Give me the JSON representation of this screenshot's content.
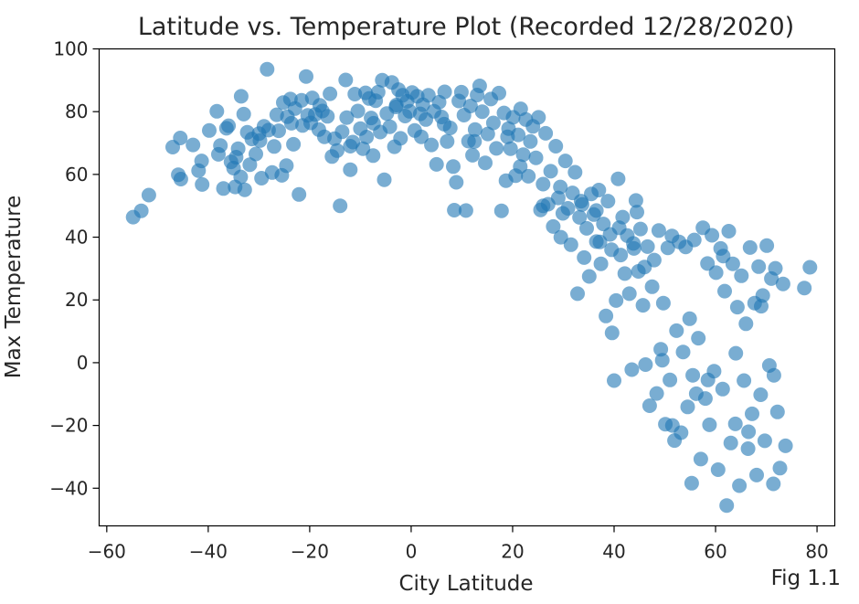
{
  "chart_data": {
    "type": "scatter",
    "title": "Latitude vs. Temperature Plot (Recorded 12/28/2020)",
    "xlabel": "City Latitude",
    "ylabel": "Max Temperature",
    "caption": "Fig 1.1",
    "xlim": [
      -61.5,
      83.5
    ],
    "ylim": [
      -52,
      100
    ],
    "xticks": [
      -60,
      -40,
      -20,
      0,
      20,
      40,
      60,
      80
    ],
    "yticks": [
      -40,
      -20,
      0,
      20,
      40,
      60,
      80,
      100
    ],
    "grid": false,
    "marker_color": "#1f77b4",
    "marker_alpha": 0.6,
    "series": [
      {
        "points": [
          [
            -54.8,
            46.4
          ],
          [
            -53.2,
            48.4
          ],
          [
            -51.7,
            53.4
          ],
          [
            -47.0,
            68.7
          ],
          [
            -45.9,
            59.9
          ],
          [
            -45.5,
            71.6
          ],
          [
            -45.4,
            58.5
          ],
          [
            -43.0,
            69.4
          ],
          [
            -41.9,
            61.2
          ],
          [
            -41.3,
            64.3
          ],
          [
            -41.2,
            56.8
          ],
          [
            -39.8,
            74.0
          ],
          [
            -38.3,
            80.1
          ],
          [
            -38.0,
            66.4
          ],
          [
            -37.6,
            69.2
          ],
          [
            -37.0,
            55.5
          ],
          [
            -36.4,
            74.7
          ],
          [
            -35.0,
            62.0
          ],
          [
            -34.7,
            56.0
          ],
          [
            -34.5,
            65.5
          ],
          [
            -34.1,
            68.2
          ],
          [
            -33.6,
            59.2
          ],
          [
            -33.5,
            84.9
          ],
          [
            -33.0,
            79.2
          ],
          [
            -32.8,
            55.1
          ],
          [
            -32.3,
            73.4
          ],
          [
            -31.8,
            63.1
          ],
          [
            -31.4,
            71.3
          ],
          [
            -30.6,
            66.5
          ],
          [
            -29.8,
            70.8
          ],
          [
            -29.5,
            58.8
          ],
          [
            -29.0,
            75.3
          ],
          [
            -28.4,
            93.5
          ],
          [
            -28.1,
            74.1
          ],
          [
            -27.4,
            60.6
          ],
          [
            -27.0,
            68.9
          ],
          [
            -26.1,
            73.9
          ],
          [
            -25.5,
            59.7
          ],
          [
            -25.2,
            82.9
          ],
          [
            -24.6,
            62.8
          ],
          [
            -24.4,
            78.4
          ],
          [
            -23.8,
            84.0
          ],
          [
            -23.6,
            76.3
          ],
          [
            -23.2,
            69.6
          ],
          [
            -22.9,
            81.0
          ],
          [
            -22.1,
            53.6
          ],
          [
            -21.6,
            83.6
          ],
          [
            -21.4,
            75.6
          ],
          [
            -20.7,
            91.2
          ],
          [
            -20.4,
            78.8
          ],
          [
            -19.8,
            76.4
          ],
          [
            -19.5,
            84.4
          ],
          [
            -18.9,
            79.1
          ],
          [
            -18.2,
            74.3
          ],
          [
            -17.5,
            80.2
          ],
          [
            -17.1,
            72.0
          ],
          [
            -16.5,
            78.5
          ],
          [
            -16.0,
            85.7
          ],
          [
            -15.6,
            65.7
          ],
          [
            -15.1,
            71.4
          ],
          [
            -14.6,
            67.6
          ],
          [
            -14.0,
            50.0
          ],
          [
            -13.6,
            73.6
          ],
          [
            -12.9,
            90.1
          ],
          [
            -12.7,
            78.1
          ],
          [
            -12.0,
            61.5
          ],
          [
            -11.5,
            70.3
          ],
          [
            -11.1,
            85.6
          ],
          [
            -10.5,
            80.2
          ],
          [
            -10.0,
            74.6
          ],
          [
            -9.5,
            68.2
          ],
          [
            -9.0,
            86.0
          ],
          [
            -8.8,
            71.9
          ],
          [
            -8.3,
            84.2
          ],
          [
            -7.9,
            78.0
          ],
          [
            -7.4,
            76.3
          ],
          [
            -7.0,
            83.5
          ],
          [
            -6.5,
            86.2
          ],
          [
            -6.1,
            73.5
          ],
          [
            -5.7,
            90.0
          ],
          [
            -5.3,
            58.3
          ],
          [
            -4.8,
            79.4
          ],
          [
            -4.2,
            75.2
          ],
          [
            -3.8,
            89.3
          ],
          [
            -3.3,
            68.8
          ],
          [
            -2.9,
            82.1
          ],
          [
            -2.5,
            87.0
          ],
          [
            -2.1,
            71.5
          ],
          [
            -1.7,
            85.2
          ],
          [
            -1.2,
            78.6
          ],
          [
            -0.8,
            83.3
          ],
          [
            -0.3,
            80.1
          ],
          [
            0.2,
            86.1
          ],
          [
            0.7,
            74.0
          ],
          [
            1.2,
            84.9
          ],
          [
            1.8,
            79.3
          ],
          [
            2.3,
            82.2
          ],
          [
            2.9,
            77.5
          ],
          [
            3.4,
            85.2
          ],
          [
            4.0,
            69.4
          ],
          [
            4.5,
            80.1
          ],
          [
            5.0,
            63.2
          ],
          [
            5.5,
            83.0
          ],
          [
            6.0,
            78.3
          ],
          [
            6.6,
            86.3
          ],
          [
            7.1,
            70.5
          ],
          [
            7.7,
            74.8
          ],
          [
            8.3,
            62.5
          ],
          [
            8.5,
            48.6
          ],
          [
            8.9,
            57.5
          ],
          [
            9.4,
            83.4
          ],
          [
            9.9,
            86.2
          ],
          [
            10.4,
            78.9
          ],
          [
            10.8,
            48.5
          ],
          [
            11.3,
            70.6
          ],
          [
            11.7,
            81.8
          ],
          [
            12.1,
            66.1
          ],
          [
            12.6,
            74.3
          ],
          [
            13.0,
            85.3
          ],
          [
            13.5,
            88.2
          ],
          [
            14.0,
            80.0
          ],
          [
            14.6,
            63.7
          ],
          [
            15.1,
            72.9
          ],
          [
            15.7,
            84.0
          ],
          [
            16.2,
            76.4
          ],
          [
            16.8,
            68.3
          ],
          [
            17.3,
            85.9
          ],
          [
            17.8,
            48.4
          ],
          [
            18.3,
            79.6
          ],
          [
            18.7,
            58.0
          ],
          [
            19.2,
            74.6
          ],
          [
            19.6,
            68.2
          ],
          [
            20.1,
            78.2
          ],
          [
            20.6,
            59.6
          ],
          [
            21.1,
            72.6
          ],
          [
            21.6,
            80.9
          ],
          [
            22.1,
            66.3
          ],
          [
            22.6,
            77.5
          ],
          [
            23.1,
            59.4
          ],
          [
            23.5,
            70.5
          ],
          [
            24.0,
            75.3
          ],
          [
            24.6,
            65.3
          ],
          [
            25.1,
            78.2
          ],
          [
            25.5,
            48.7
          ],
          [
            26.0,
            56.9
          ],
          [
            26.5,
            73.1
          ],
          [
            27.0,
            50.5
          ],
          [
            27.5,
            61.0
          ],
          [
            28.0,
            43.4
          ],
          [
            28.5,
            69.0
          ],
          [
            29.0,
            52.5
          ],
          [
            29.4,
            56.0
          ],
          [
            29.9,
            47.6
          ],
          [
            30.4,
            64.3
          ],
          [
            30.9,
            49.2
          ],
          [
            31.5,
            37.6
          ],
          [
            31.8,
            54.1
          ],
          [
            32.3,
            60.7
          ],
          [
            32.8,
            22.0
          ],
          [
            33.2,
            46.3
          ],
          [
            33.7,
            50.4
          ],
          [
            34.1,
            33.5
          ],
          [
            34.6,
            42.8
          ],
          [
            35.1,
            27.5
          ],
          [
            35.5,
            53.8
          ],
          [
            36.0,
            47.2
          ],
          [
            36.5,
            38.6
          ],
          [
            37.0,
            55.0
          ],
          [
            37.4,
            31.5
          ],
          [
            37.9,
            44.2
          ],
          [
            38.4,
            14.9
          ],
          [
            38.8,
            51.5
          ],
          [
            39.2,
            40.9
          ],
          [
            39.6,
            9.5
          ],
          [
            40.0,
            -5.7
          ],
          [
            40.4,
            19.8
          ],
          [
            40.8,
            58.6
          ],
          [
            41.3,
            34.3
          ],
          [
            41.7,
            46.4
          ],
          [
            42.1,
            28.4
          ],
          [
            42.6,
            40.5
          ],
          [
            43.0,
            22.0
          ],
          [
            43.5,
            -2.2
          ],
          [
            43.9,
            36.4
          ],
          [
            44.3,
            51.7
          ],
          [
            44.8,
            29.1
          ],
          [
            45.2,
            42.6
          ],
          [
            45.7,
            18.3
          ],
          [
            46.2,
            -0.6
          ],
          [
            46.6,
            37.0
          ],
          [
            47.0,
            -13.7
          ],
          [
            47.5,
            24.2
          ],
          [
            47.9,
            32.7
          ],
          [
            48.4,
            -9.8
          ],
          [
            48.8,
            42.1
          ],
          [
            49.2,
            4.3
          ],
          [
            49.7,
            19.0
          ],
          [
            50.1,
            -19.6
          ],
          [
            50.6,
            36.6
          ],
          [
            51.0,
            -5.5
          ],
          [
            51.4,
            40.4
          ],
          [
            51.9,
            -24.8
          ],
          [
            52.3,
            10.2
          ],
          [
            52.8,
            38.5
          ],
          [
            53.2,
            -22.3
          ],
          [
            53.6,
            3.4
          ],
          [
            54.1,
            36.9
          ],
          [
            54.5,
            -14.1
          ],
          [
            54.9,
            14.0
          ],
          [
            55.3,
            -38.4
          ],
          [
            55.8,
            39.1
          ],
          [
            56.2,
            -9.9
          ],
          [
            56.6,
            7.8
          ],
          [
            57.1,
            -30.7
          ],
          [
            57.5,
            43.0
          ],
          [
            58.0,
            -11.4
          ],
          [
            58.4,
            31.6
          ],
          [
            58.8,
            -19.8
          ],
          [
            59.3,
            40.6
          ],
          [
            59.7,
            -2.7
          ],
          [
            60.1,
            28.7
          ],
          [
            60.5,
            -34.1
          ],
          [
            61.0,
            36.4
          ],
          [
            61.4,
            -8.4
          ],
          [
            61.8,
            22.8
          ],
          [
            62.2,
            -45.5
          ],
          [
            62.6,
            41.9
          ],
          [
            63.0,
            -25.6
          ],
          [
            63.4,
            31.5
          ],
          [
            63.9,
            -19.5
          ],
          [
            64.3,
            17.7
          ],
          [
            64.7,
            -39.2
          ],
          [
            65.1,
            27.7
          ],
          [
            65.6,
            -5.7
          ],
          [
            66.0,
            12.4
          ],
          [
            66.4,
            -27.4
          ],
          [
            66.8,
            36.7
          ],
          [
            67.2,
            -16.3
          ],
          [
            67.7,
            19.0
          ],
          [
            68.1,
            -35.8
          ],
          [
            68.5,
            30.6
          ],
          [
            68.9,
            -10.2
          ],
          [
            69.3,
            21.4
          ],
          [
            69.7,
            -24.9
          ],
          [
            70.1,
            37.3
          ],
          [
            70.6,
            -0.9
          ],
          [
            71.0,
            26.8
          ],
          [
            71.4,
            -38.6
          ],
          [
            71.8,
            30.1
          ],
          [
            72.2,
            -15.7
          ],
          [
            72.7,
            -33.6
          ],
          [
            73.3,
            25.1
          ],
          [
            73.8,
            -26.5
          ],
          [
            77.5,
            23.8
          ],
          [
            78.6,
            30.4
          ],
          [
            -30.0,
            73.0
          ],
          [
            -35.5,
            64.0
          ],
          [
            -36.0,
            75.5
          ],
          [
            -26.5,
            79.0
          ],
          [
            -18.0,
            82.0
          ],
          [
            -7.5,
            66.0
          ],
          [
            2.0,
            72.0
          ],
          [
            6.5,
            76.0
          ],
          [
            12.5,
            70.5
          ],
          [
            19.0,
            72.0
          ],
          [
            26.0,
            50.0
          ],
          [
            33.5,
            51.5
          ],
          [
            37.2,
            38.5
          ],
          [
            39.5,
            36.0
          ],
          [
            41.0,
            43.0
          ],
          [
            43.8,
            38.0
          ],
          [
            46.0,
            30.5
          ],
          [
            49.5,
            0.8
          ],
          [
            51.5,
            -20.0
          ],
          [
            55.5,
            -4.0
          ],
          [
            58.5,
            -5.5
          ],
          [
            61.5,
            34.0
          ],
          [
            64.0,
            3.0
          ],
          [
            66.5,
            -22.0
          ],
          [
            69.0,
            18.0
          ],
          [
            71.5,
            -4.0
          ],
          [
            44.5,
            48.0
          ],
          [
            36.5,
            48.5
          ],
          [
            29.5,
            40.0
          ],
          [
            21.5,
            62.5
          ],
          [
            -12.0,
            69.0
          ],
          [
            -3.0,
            81.5
          ]
        ]
      }
    ]
  }
}
